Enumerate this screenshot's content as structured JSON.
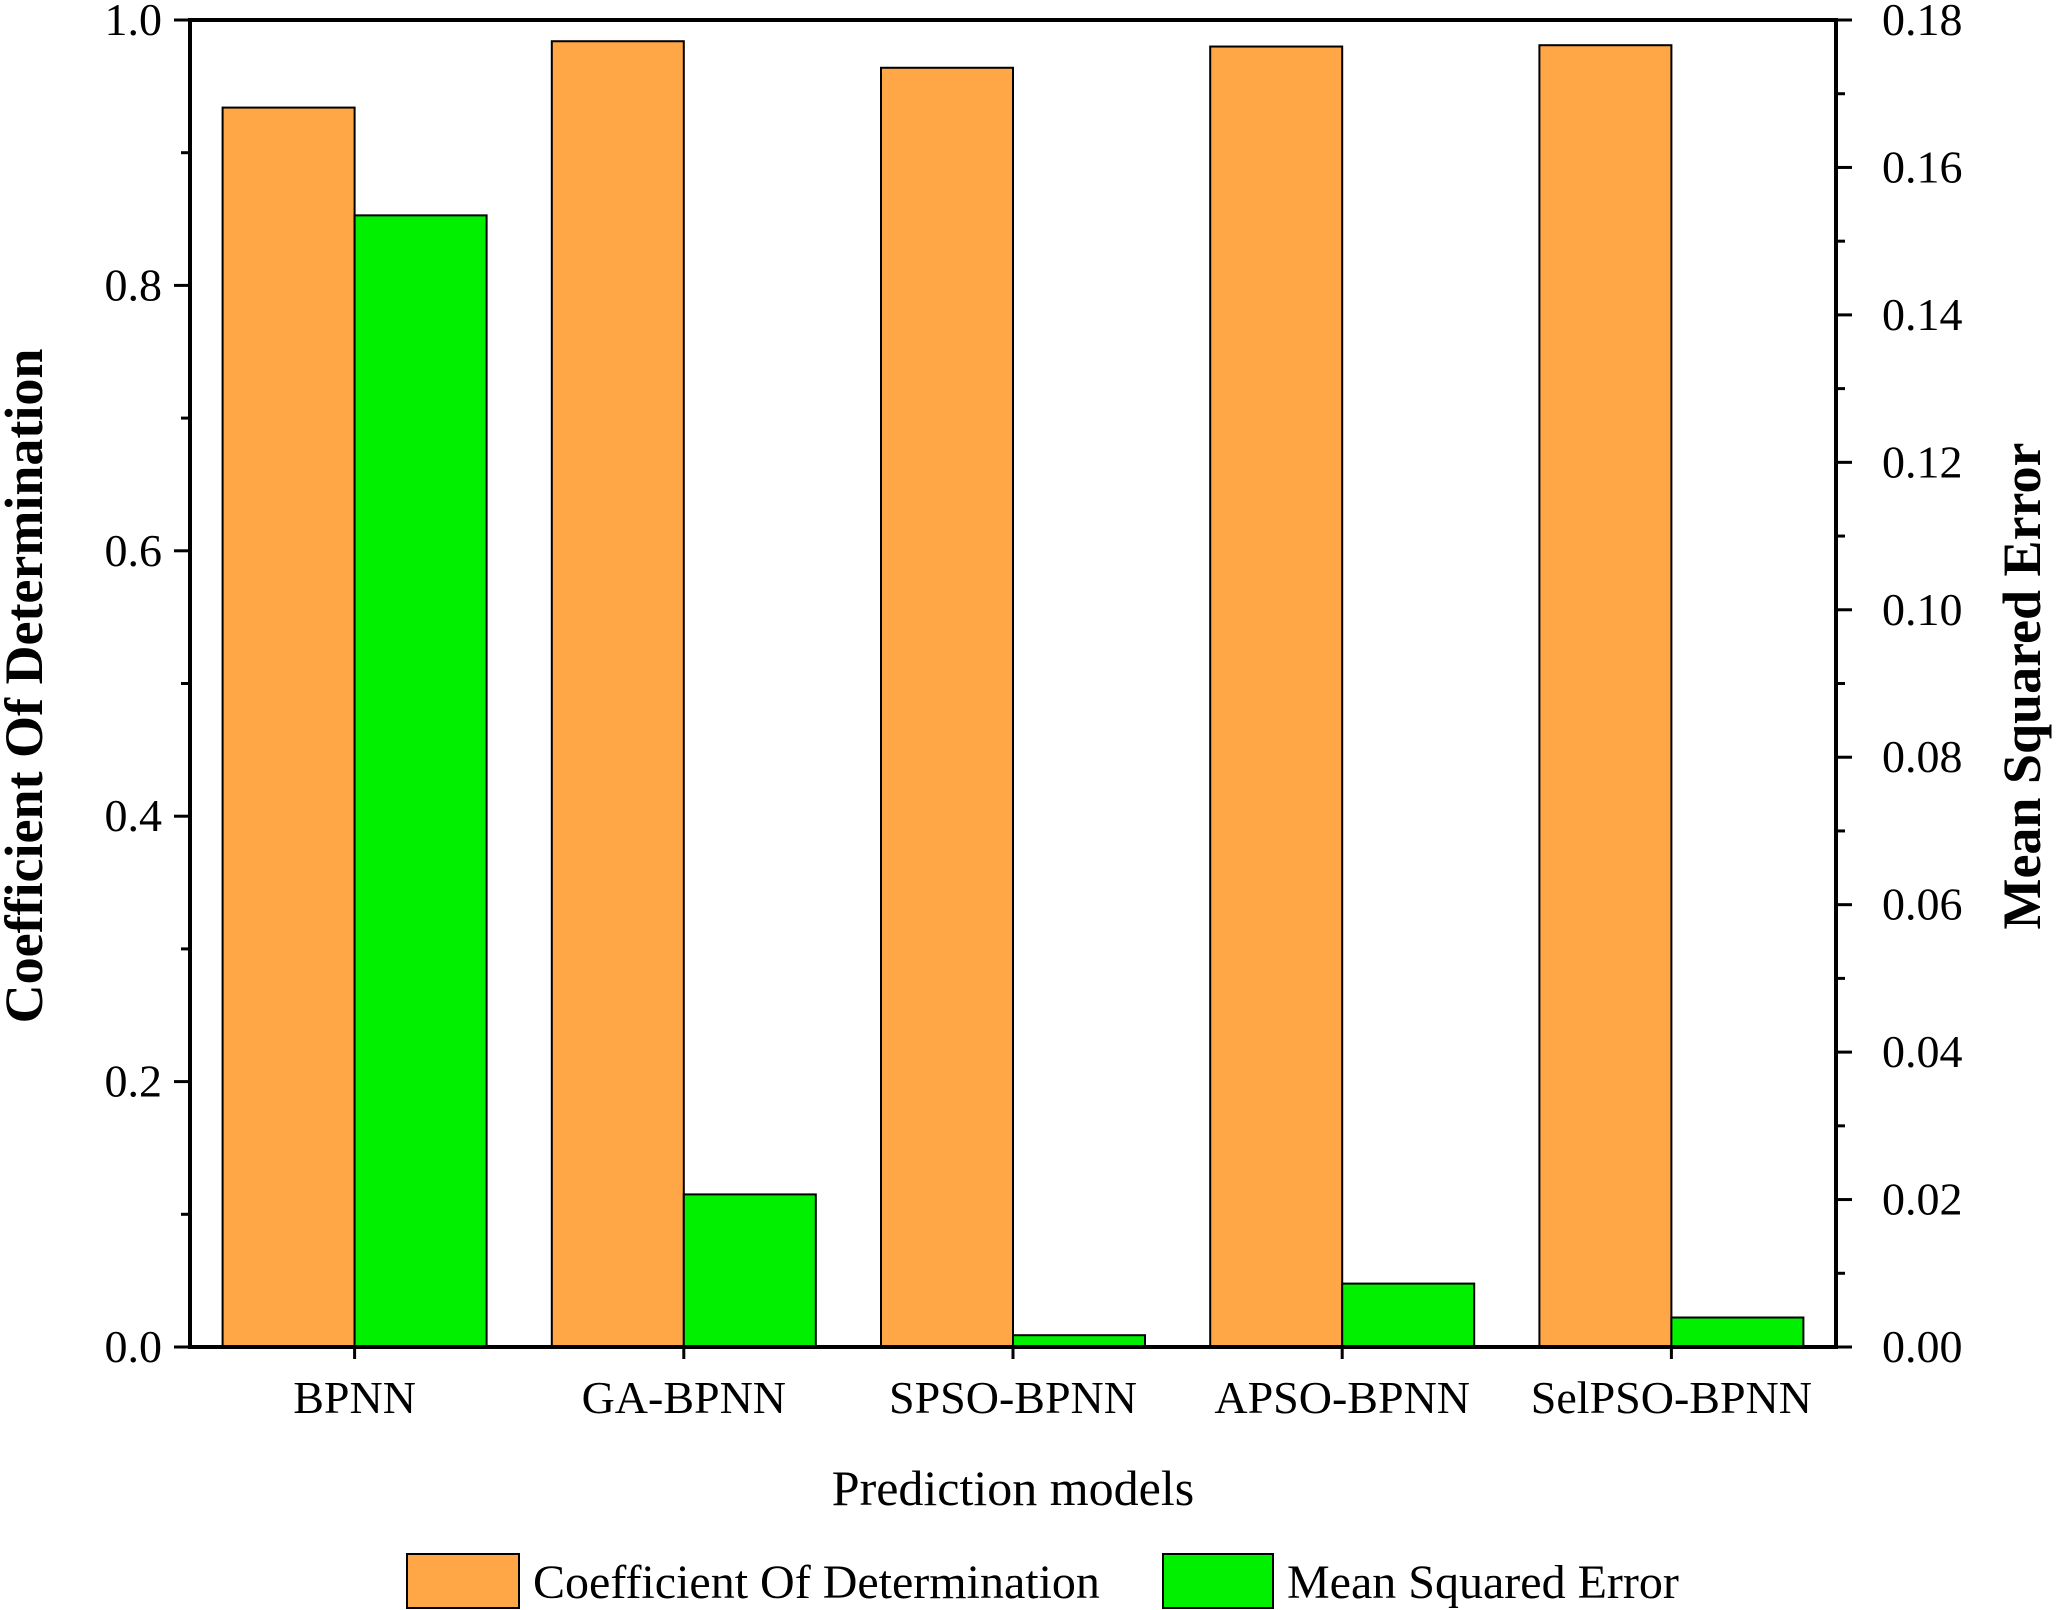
{
  "chart_data": {
    "type": "bar",
    "categories": [
      "BPNN",
      "GA-BPNN",
      "SPSO-BPNN",
      "APSO-BPNN",
      "SelPSO-BPNN"
    ],
    "series": [
      {
        "name": "Coefficient Of Determination",
        "axis": "left",
        "color": "#FFA646",
        "values": [
          0.934,
          0.984,
          0.964,
          0.98,
          0.981
        ]
      },
      {
        "name": "Mean Squared Error",
        "axis": "right",
        "color": "#00F000",
        "values": [
          0.1535,
          0.0207,
          0.0016,
          0.0086,
          0.004
        ]
      }
    ],
    "xlabel": "Prediction models",
    "ylabel": "Coefficient Of Determination",
    "y2label": "Mean Squared Error",
    "ylim": [
      0,
      1.0
    ],
    "y2lim": [
      0,
      0.18
    ],
    "yticks": [
      "0.0",
      "0.2",
      "0.4",
      "0.6",
      "0.8",
      "1.0"
    ],
    "y2ticks": [
      "0.00",
      "0.02",
      "0.04",
      "0.06",
      "0.08",
      "0.10",
      "0.12",
      "0.14",
      "0.16",
      "0.18"
    ],
    "legend": {
      "position": "bottom-center",
      "entries": [
        "Coefficient Of Determination",
        "Mean Squared Error"
      ]
    },
    "grid": false
  }
}
